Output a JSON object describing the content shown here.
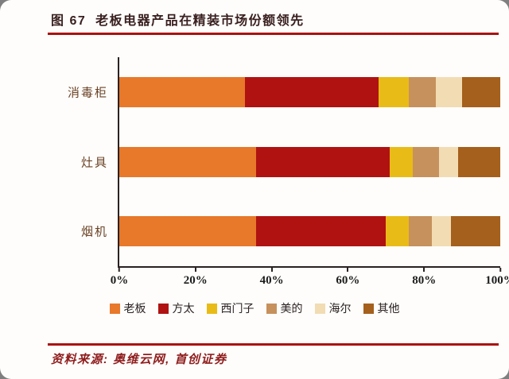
{
  "page": {
    "title": "图 67  老板电器产品在精装市场份额领先",
    "source": "资料来源: 奥维云网, 首创证券",
    "rule_color": "#aa1111",
    "source_color": "#8f1d1d"
  },
  "chart_data": {
    "type": "bar",
    "orientation": "horizontal",
    "stacked": true,
    "title": "图 67 老板电器产品在精装市场份额领先",
    "categories": [
      "消毒柜",
      "灶具",
      "烟机"
    ],
    "series": [
      {
        "name": "老板",
        "color": "#E8782A",
        "values": [
          33,
          36,
          36
        ]
      },
      {
        "name": "方太",
        "color": "#B01212",
        "values": [
          35,
          35,
          34
        ]
      },
      {
        "name": "西门子",
        "color": "#E9BB16",
        "values": [
          8,
          6,
          6
        ]
      },
      {
        "name": "美的",
        "color": "#C6915C",
        "values": [
          7,
          7,
          6
        ]
      },
      {
        "name": "海尔",
        "color": "#F2DCB4",
        "values": [
          7,
          5,
          5
        ]
      },
      {
        "name": "其他",
        "color": "#A4601C",
        "values": [
          10,
          11,
          13
        ]
      }
    ],
    "xlabel": "",
    "ylabel": "",
    "xlim": [
      0,
      100
    ],
    "x_ticks": [
      "0%",
      "20%",
      "40%",
      "60%",
      "80%",
      "100%"
    ],
    "unit": "percent",
    "grid": false,
    "legend_position": "bottom"
  }
}
